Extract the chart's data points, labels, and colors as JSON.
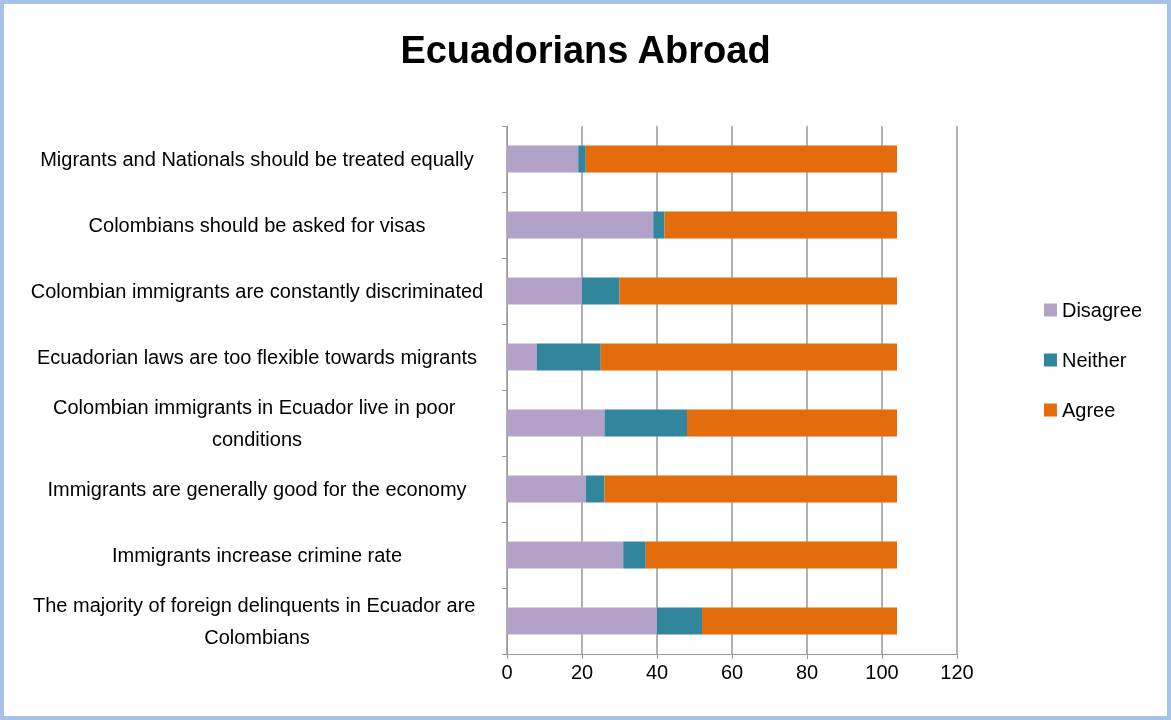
{
  "chart_data": {
    "type": "bar",
    "title": "Ecuadorians Abroad",
    "orientation": "horizontal",
    "stacked": true,
    "categories": [
      "Migrants and Nationals should be treated equally",
      "Colombians should be asked for visas",
      "Colombian immigrants are constantly discriminated",
      "Ecuadorian laws are too flexible towards migrants",
      "Colombian immigrants in Ecuador live in poor conditions",
      "Immigrants are generally good for the economy",
      "Immigrants increase crimine rate",
      "The majority of foreign delinquents in Ecuador are Colombians"
    ],
    "series": [
      {
        "name": "Disagree",
        "color": "#b3a2c7",
        "values": [
          19,
          39,
          20,
          8,
          26,
          21,
          31,
          40
        ]
      },
      {
        "name": "Neither",
        "color": "#31859c",
        "values": [
          2,
          3,
          10,
          17,
          22,
          5,
          6,
          12
        ]
      },
      {
        "name": "Agree",
        "color": "#e46c0a",
        "values": [
          83,
          62,
          74,
          79,
          56,
          78,
          67,
          52
        ]
      }
    ],
    "xlim": [
      0,
      120
    ],
    "xticks": [
      0,
      20,
      40,
      60,
      80,
      100,
      120
    ],
    "grid": "x",
    "legend": "right"
  }
}
